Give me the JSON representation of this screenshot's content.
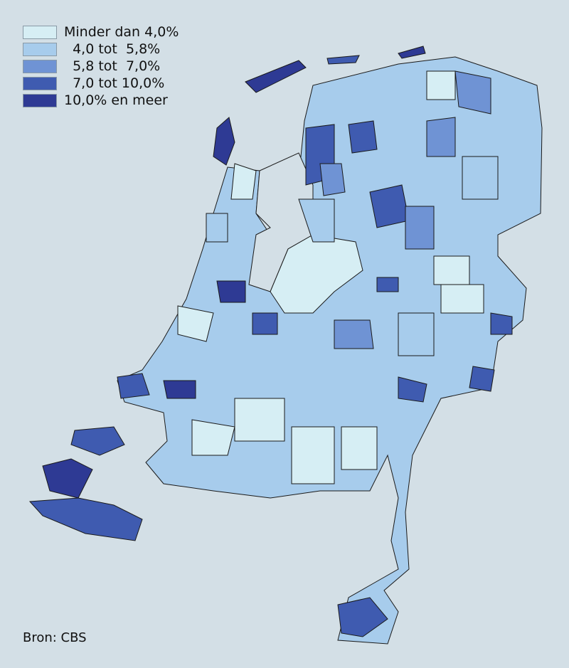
{
  "legend": {
    "items": [
      {
        "label": "Minder dan 4,0%",
        "color": "#d6eef4"
      },
      {
        "label": "  4,0 tot  5,8%",
        "color": "#a7ccec"
      },
      {
        "label": "  5,8 tot  7,0%",
        "color": "#6f93d4"
      },
      {
        "label": "  7,0 tot 10,0%",
        "color": "#3f5bb0"
      },
      {
        "label": "10,0% en meer",
        "color": "#2e3a94"
      }
    ]
  },
  "source": "Bron: CBS",
  "colors": {
    "background": "#d3dfe6",
    "border": "#1a1a1a"
  }
}
